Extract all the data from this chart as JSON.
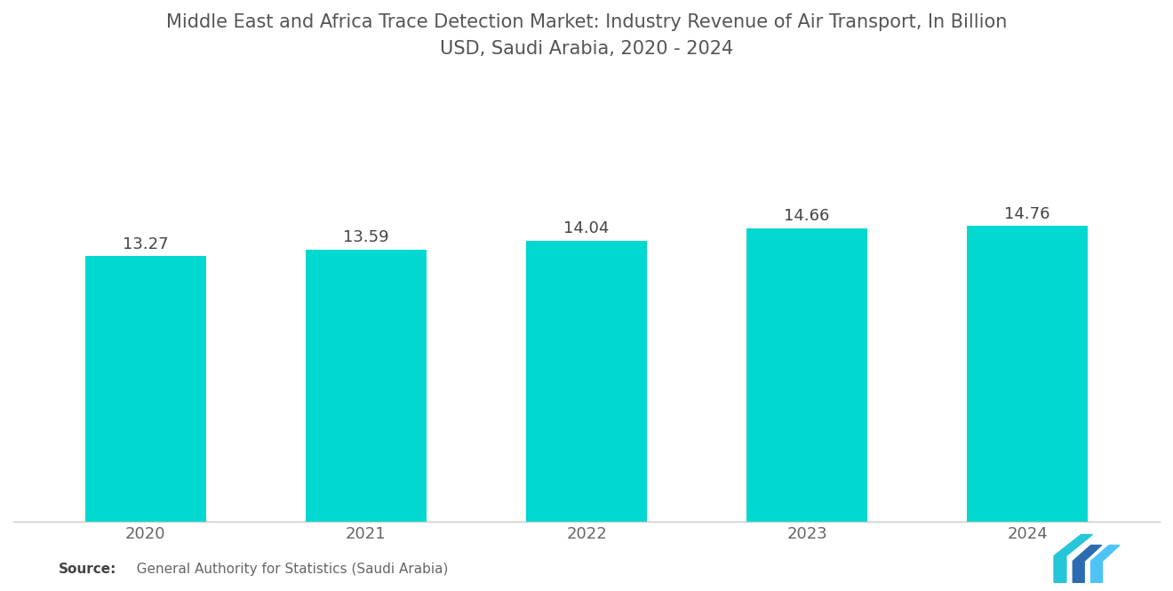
{
  "title": "Middle East and Africa Trace Detection Market: Industry Revenue of Air Transport, In Billion\nUSD, Saudi Arabia, 2020 - 2024",
  "categories": [
    "2020",
    "2021",
    "2022",
    "2023",
    "2024"
  ],
  "values": [
    13.27,
    13.59,
    14.04,
    14.66,
    14.76
  ],
  "bar_color": "#00D8D0",
  "bar_width": 0.55,
  "value_label_fontsize": 13,
  "title_fontsize": 15,
  "xtick_fontsize": 13,
  "source_bold": "Source:",
  "source_normal": "   General Authority for Statistics (Saudi Arabia)",
  "source_fontsize": 11,
  "background_color": "#ffffff",
  "ylim": [
    0,
    22
  ],
  "value_label_color": "#444444",
  "tick_color": "#666666",
  "spine_color": "#cccccc"
}
